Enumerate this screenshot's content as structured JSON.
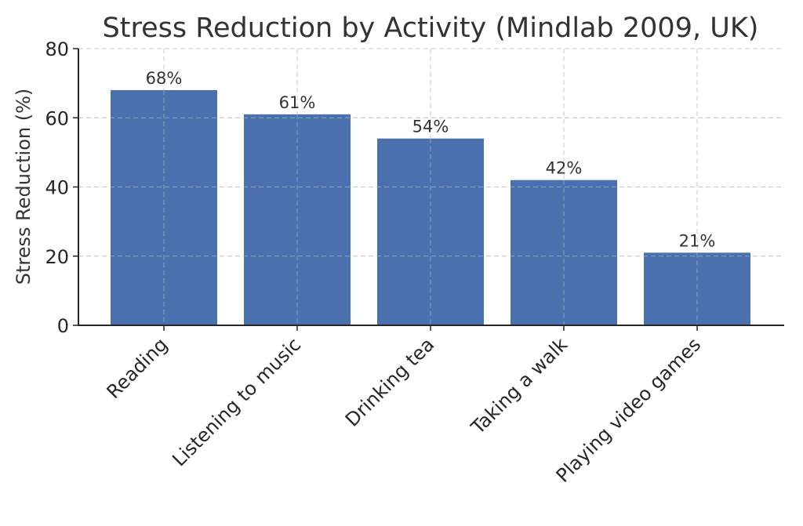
{
  "chart_data": {
    "type": "bar",
    "title": "Stress Reduction by Activity (Mindlab 2009, UK)",
    "xlabel": "",
    "ylabel": "Stress Reduction (%)",
    "categories": [
      "Reading",
      "Listening to music",
      "Drinking tea",
      "Taking a walk",
      "Playing video games"
    ],
    "values": [
      68,
      61,
      54,
      42,
      21
    ],
    "data_labels": [
      "68%",
      "61%",
      "54%",
      "42%",
      "21%"
    ],
    "yticks": [
      0,
      20,
      40,
      60,
      80
    ],
    "ytick_labels": [
      "0",
      "20",
      "40",
      "60",
      "80"
    ],
    "ylim": [
      0,
      80
    ],
    "grid": true,
    "bar_color": "#4a70ad"
  }
}
